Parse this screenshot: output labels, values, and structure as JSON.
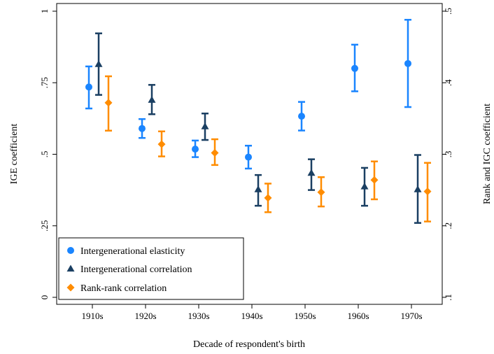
{
  "chart_data": {
    "type": "scatter",
    "xlabel": "Decade of respondent's birth",
    "ylabel_left": "IGE coefficient",
    "ylabel_right": "Rank and IGC coefficient",
    "categories": [
      "1910s",
      "1920s",
      "1930s",
      "1940s",
      "1950s",
      "1960s",
      "1970s"
    ],
    "y_left": {
      "lim": [
        0,
        1
      ],
      "ticks": [
        0,
        0.25,
        0.5,
        0.75,
        1
      ],
      "tick_labels": [
        "0",
        ".25",
        ".5",
        ".75",
        "1"
      ]
    },
    "y_right": {
      "lim": [
        0.1,
        0.5
      ],
      "ticks": [
        0.1,
        0.2,
        0.3,
        0.4,
        0.5
      ],
      "tick_labels": [
        ".1",
        ".2",
        ".3",
        ".4",
        ".5"
      ]
    },
    "grid": false,
    "legend_position": "bottom-left",
    "series": [
      {
        "name": "Intergenerational elasticity",
        "axis": "left",
        "marker": "circle",
        "color": "#1a85ff",
        "values": [
          0.735,
          0.59,
          0.518,
          0.49,
          0.633,
          0.8,
          0.817
        ],
        "ci_low": [
          0.66,
          0.557,
          0.49,
          0.45,
          0.583,
          0.72,
          0.665
        ],
        "ci_high": [
          0.807,
          0.623,
          0.548,
          0.53,
          0.683,
          0.883,
          0.97
        ]
      },
      {
        "name": "Intergenerational correlation",
        "axis": "right",
        "marker": "triangle",
        "color": "#1a3f62",
        "values": [
          0.426,
          0.376,
          0.339,
          0.251,
          0.274,
          0.255,
          0.251
        ],
        "ci_low": [
          0.383,
          0.356,
          0.32,
          0.228,
          0.25,
          0.228,
          0.204
        ],
        "ci_high": [
          0.469,
          0.397,
          0.357,
          0.271,
          0.293,
          0.281,
          0.299
        ]
      },
      {
        "name": "Rank-rank correlation",
        "axis": "right",
        "marker": "diamond",
        "color": "#ff8c00",
        "values": [
          0.372,
          0.314,
          0.302,
          0.239,
          0.247,
          0.264,
          0.248
        ],
        "ci_low": [
          0.333,
          0.297,
          0.285,
          0.219,
          0.227,
          0.237,
          0.206
        ],
        "ci_high": [
          0.409,
          0.332,
          0.321,
          0.259,
          0.268,
          0.29,
          0.288
        ]
      }
    ]
  }
}
